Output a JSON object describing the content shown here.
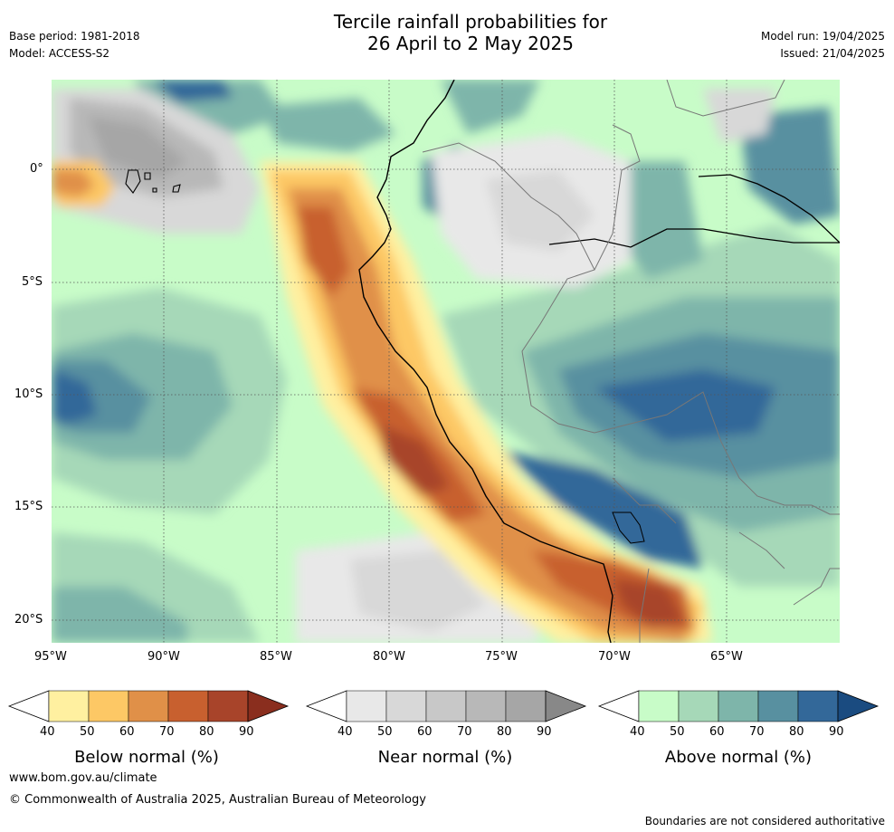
{
  "header": {
    "title_line1": "Tercile rainfall probabilities for",
    "title_line2": "26 April to 2 May 2025",
    "base_period": "Base period: 1981-2018",
    "model": "Model: ACCESS-S2",
    "model_run": "Model run: 19/04/2025",
    "issued": "Issued: 21/04/2025"
  },
  "map": {
    "x_ticks": [
      "95°W",
      "90°W",
      "85°W",
      "80°W",
      "75°W",
      "70°W",
      "65°W"
    ],
    "y_ticks": [
      "0°",
      "5°S",
      "10°S",
      "15°S",
      "20°S"
    ],
    "colors": {
      "below": [
        "#fff0a0",
        "#fdc865",
        "#e09048",
        "#c8602f",
        "#a8442a",
        "#8a2e1e"
      ],
      "near": [
        "#e8e8e8",
        "#d8d8d8",
        "#c8c8c8",
        "#b8b8b8",
        "#a6a6a6",
        "#888888"
      ],
      "above": [
        "#c8fcc8",
        "#a6d8b8",
        "#7eb5aa",
        "#5890a0",
        "#336899",
        "#1a4b80"
      ]
    }
  },
  "colorbars": {
    "ticks": [
      "40",
      "50",
      "60",
      "70",
      "80",
      "90"
    ],
    "below_title": "Below normal (%)",
    "near_title": "Near normal (%)",
    "above_title": "Above normal (%)"
  },
  "footer": {
    "url": "www.bom.gov.au/climate",
    "copyright": "© Commonwealth of Australia 2025, Australian Bureau of Meteorology",
    "disclaimer": "Boundaries are not considered authoritative"
  }
}
